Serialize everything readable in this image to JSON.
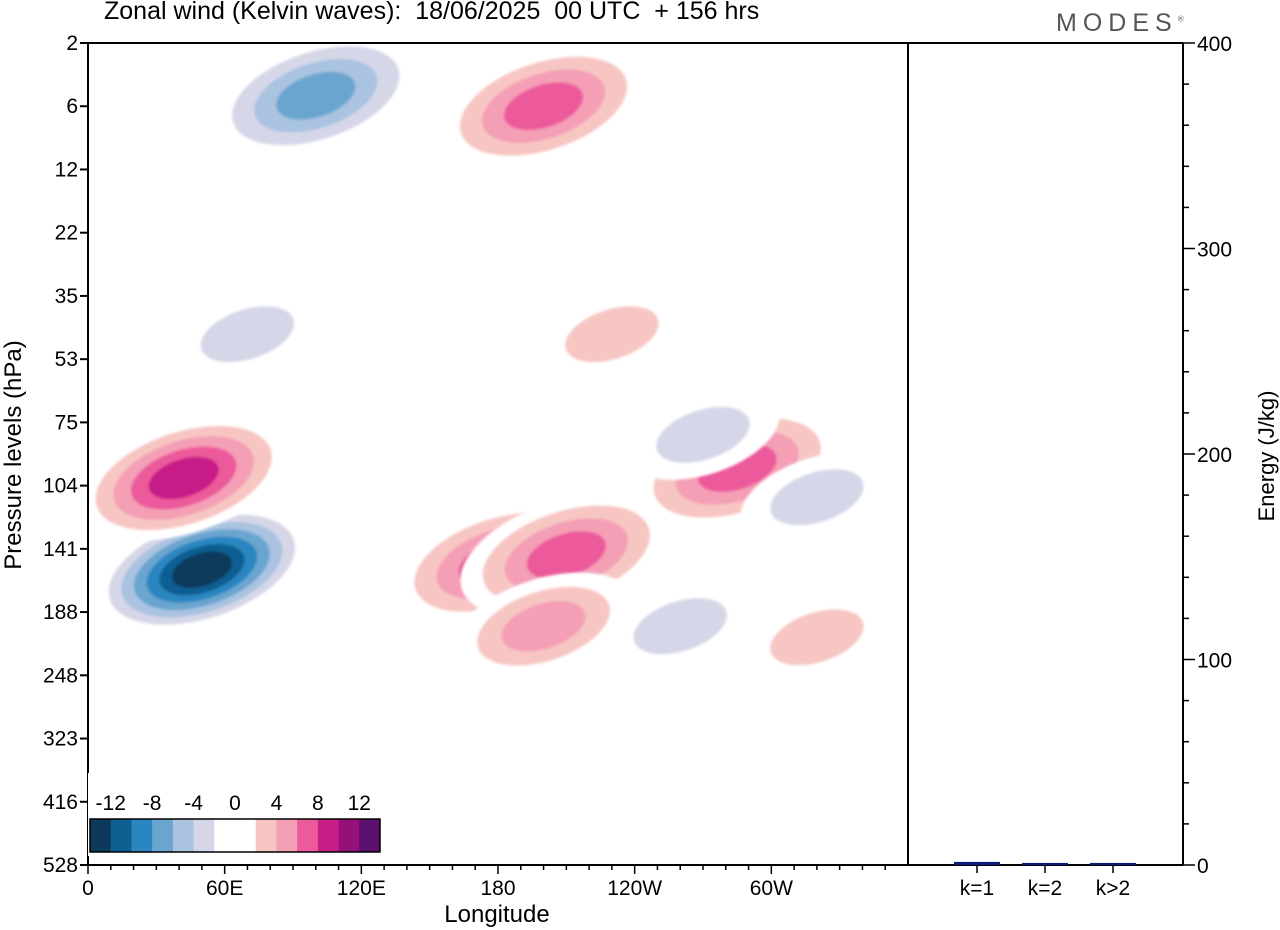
{
  "header": {
    "title": "Zonal wind (Kelvin waves):  18/06/2025  00 UTC  + 156 hrs",
    "brand": "MODES"
  },
  "chart_data": [
    {
      "type": "heatmap",
      "title": "Zonal wind (Kelvin waves):  18/06/2025  00 UTC  + 156 hrs",
      "xlabel": "Longitude",
      "ylabel": "Pressure levels (hPa)",
      "x_ticks": [
        "0",
        "60E",
        "120E",
        "180",
        "120W",
        "60W"
      ],
      "x_tick_degrees": [
        0,
        60,
        120,
        180,
        240,
        300
      ],
      "xlim": [
        0,
        360
      ],
      "y_ticks": [
        "2",
        "6",
        "12",
        "22",
        "35",
        "53",
        "75",
        "104",
        "141",
        "188",
        "248",
        "323",
        "416",
        "528"
      ],
      "colorbar": {
        "labels": [
          "-12",
          "-8",
          "-4",
          "0",
          "4",
          "8",
          "12"
        ],
        "colors": [
          "#0d3a5b",
          "#0f5f93",
          "#2a86c0",
          "#6aa5cf",
          "#a9c3e1",
          "#d5d7e8",
          "#ffffff",
          "#ffffff",
          "#f7c6c2",
          "#f49fb6",
          "#ec5a9b",
          "#c71f87",
          "#96107a",
          "#5c0f6e"
        ]
      },
      "anomalies": [
        {
          "lon": 50,
          "p": 155,
          "value": -14
        },
        {
          "lon": 42,
          "p": 100,
          "value": 9
        },
        {
          "lon": 180,
          "p": 150,
          "value": 7
        },
        {
          "lon": 210,
          "p": 145,
          "value": 7
        },
        {
          "lon": 200,
          "p": 200,
          "value": 5
        },
        {
          "lon": 285,
          "p": 95,
          "value": 8
        },
        {
          "lon": 100,
          "p": 5,
          "value": -8
        },
        {
          "lon": 200,
          "p": 6,
          "value": 8
        },
        {
          "lon": 270,
          "p": 80,
          "value": -4
        },
        {
          "lon": 320,
          "p": 110,
          "value": -4
        },
        {
          "lon": 260,
          "p": 200,
          "value": -4
        },
        {
          "lon": 70,
          "p": 45,
          "value": -3
        },
        {
          "lon": 230,
          "p": 45,
          "value": 3
        },
        {
          "lon": 320,
          "p": 210,
          "value": 3
        }
      ]
    },
    {
      "type": "bar",
      "categories": [
        "k=1",
        "k=2",
        "k>2"
      ],
      "values": [
        1.5,
        1.0,
        1.0
      ],
      "ylabel": "Energy (J/kg)",
      "ylim": [
        0,
        400
      ],
      "y_ticks": [
        "0",
        "100",
        "200",
        "300",
        "400"
      ],
      "bar_color": "#0b1a7a"
    }
  ]
}
